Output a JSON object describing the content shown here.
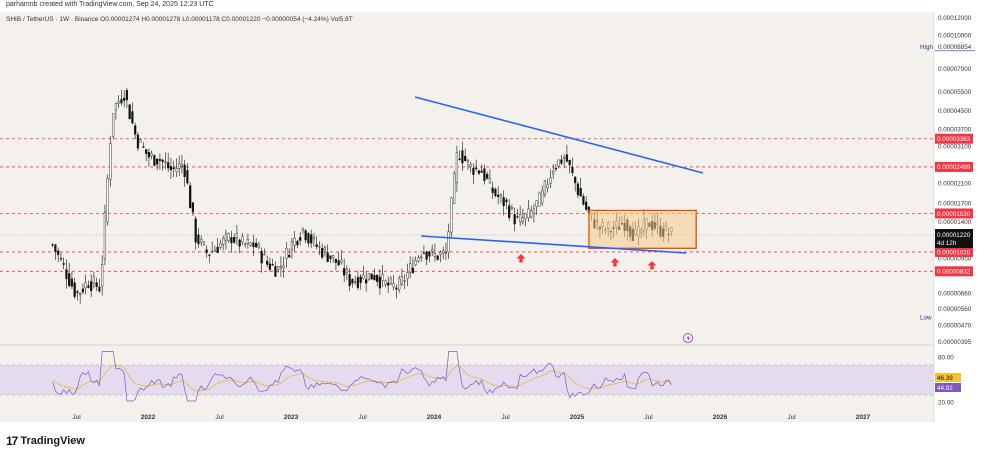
{
  "header": {
    "credit": "parhamnb created with TradingView.com, Sep 24, 2025 12:23 UTC"
  },
  "legend": {
    "text": "SHIB / TetherUS · 1W · Binance  O0.00001274  H0.00001278  L0.00001178  C0.00001220  −0.00000054 (−4.24%)  Vol5.8T"
  },
  "footer": {
    "brand": "TradingView"
  },
  "colors": {
    "bg": "#f4f1ec",
    "up": "#111111",
    "down": "#111111",
    "trendline": "#2962ff",
    "dashed": "#f23645",
    "box_fill": "#f5c98a",
    "box_stroke": "#e65100",
    "rsi": "#7e57c2",
    "rsi_ma": "#e6b422",
    "rsi_band": "#d9cff0",
    "price_tag": "#111111",
    "level_tag": "#f23645"
  },
  "chart_data": [
    {
      "type": "line",
      "title": "SHIB / TetherUS · 1W · Binance",
      "y_scale": "log",
      "y_axis_ticks": [
        "0.00012000",
        "0.00010000",
        "0.00008854",
        "0.00007000",
        "0.00005500",
        "0.00004500",
        "0.00003700",
        "0.00003100",
        "0.00002100",
        "0.00001700",
        "0.00001400",
        "0.00000950",
        "0.00000660",
        "0.00000560",
        "0.00000470",
        "0.00000395"
      ],
      "x_axis_ticks": [
        "Jul",
        "2022",
        "Jul",
        "2023",
        "Jul",
        "2024",
        "Jul",
        "2025",
        "Jul",
        "2026",
        "Jul",
        "2027"
      ],
      "high_label": "High",
      "high_value": "0.00008854",
      "low_label": "Low",
      "low_value": "0.00000510",
      "horizontal_levels": [
        "0.00003363",
        "0.00002499",
        "0.00001530",
        "0.00001020",
        "0.00000832"
      ],
      "current_price": "0.00001220",
      "countdown": "4d 12h",
      "price_series": [
        [
          "2021-05",
          1.1e-05
        ],
        [
          "2021-06",
          8.5e-06
        ],
        [
          "2021-07",
          6.5e-06
        ],
        [
          "2021-08",
          7.5e-06
        ],
        [
          "2021-09",
          7e-06
        ],
        [
          "2021-10",
          4.5e-05
        ],
        [
          "2021-11",
          5.5e-05
        ],
        [
          "2021-12",
          3.4e-05
        ],
        [
          "2022-01",
          2.8e-05
        ],
        [
          "2022-02",
          2.7e-05
        ],
        [
          "2022-03",
          2.4e-05
        ],
        [
          "2022-04",
          2.6e-05
        ],
        [
          "2022-05",
          1.2e-05
        ],
        [
          "2022-06",
          1e-05
        ],
        [
          "2022-07",
          1.1e-05
        ],
        [
          "2022-08",
          1.2e-05
        ],
        [
          "2022-09",
          1.1e-05
        ],
        [
          "2022-10",
          1.1e-05
        ],
        [
          "2022-11",
          9e-06
        ],
        [
          "2022-12",
          8.5e-06
        ],
        [
          "2023-01",
          1.1e-05
        ],
        [
          "2023-02",
          1.3e-05
        ],
        [
          "2023-03",
          1.1e-05
        ],
        [
          "2023-04",
          1e-05
        ],
        [
          "2023-05",
          9e-06
        ],
        [
          "2023-06",
          7.5e-06
        ],
        [
          "2023-07",
          7.8e-06
        ],
        [
          "2023-08",
          8e-06
        ],
        [
          "2023-09",
          7.2e-06
        ],
        [
          "2023-10",
          7e-06
        ],
        [
          "2023-11",
          8.5e-06
        ],
        [
          "2023-12",
          1.05e-05
        ],
        [
          "2024-01",
          9.8e-06
        ],
        [
          "2024-02",
          1e-05
        ],
        [
          "2024-03",
          3e-05
        ],
        [
          "2024-04",
          2.5e-05
        ],
        [
          "2024-05",
          2.4e-05
        ],
        [
          "2024-06",
          1.9e-05
        ],
        [
          "2024-07",
          1.7e-05
        ],
        [
          "2024-08",
          1.4e-05
        ],
        [
          "2024-09",
          1.5e-05
        ],
        [
          "2024-10",
          1.8e-05
        ],
        [
          "2024-11",
          2.5e-05
        ],
        [
          "2024-12",
          2.8e-05
        ],
        [
          "2025-01",
          2e-05
        ],
        [
          "2025-02",
          1.5e-05
        ],
        [
          "2025-03",
          1.3e-05
        ],
        [
          "2025-04",
          1.3e-05
        ],
        [
          "2025-05",
          1.4e-05
        ],
        [
          "2025-06",
          1.2e-05
        ],
        [
          "2025-07",
          1.4e-05
        ],
        [
          "2025-08",
          1.3e-05
        ],
        [
          "2025-09",
          1.22e-05
        ]
      ],
      "rsi_axis_ticks": [
        "80.00",
        "46.39",
        "44.92",
        "20.00"
      ],
      "rsi_values": [
        "46.39",
        "44.92"
      ]
    }
  ]
}
